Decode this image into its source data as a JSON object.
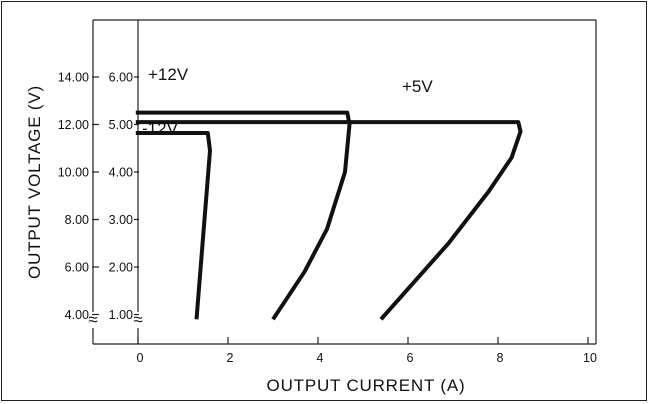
{
  "chart_data": {
    "type": "line",
    "xlabel": "OUTPUT CURRENT (A)",
    "ylabel": "OUTPUT VOLTAGE (V)",
    "x_ticks": [
      "0",
      "2",
      "4",
      "6",
      "8",
      "10"
    ],
    "y_ticks_outer": [
      "14.00",
      "12.00",
      "10.00",
      "8.00",
      "6.00",
      "4.00"
    ],
    "y_ticks_inner": [
      "6.00",
      "5.00",
      "4.00",
      "3.00",
      "2.00",
      "1.00"
    ],
    "axis_break_symbol": "≈",
    "xlim": [
      -1,
      10
    ],
    "ylim_inner": [
      0,
      6.6
    ],
    "grid": false,
    "series": [
      {
        "name": "+12V",
        "points": [
          [
            -0.05,
            5.25
          ],
          [
            4.65,
            5.25
          ],
          [
            4.7,
            5.0
          ],
          [
            4.6,
            4.0
          ],
          [
            4.2,
            2.8
          ],
          [
            3.7,
            1.9
          ],
          [
            3.0,
            0.9
          ]
        ]
      },
      {
        "name": "+5V",
        "points": [
          [
            -0.05,
            5.05
          ],
          [
            8.45,
            5.05
          ],
          [
            8.5,
            4.85
          ],
          [
            8.3,
            4.3
          ],
          [
            7.8,
            3.6
          ],
          [
            6.9,
            2.5
          ],
          [
            5.4,
            0.9
          ]
        ]
      },
      {
        "name": "-12V",
        "points": [
          [
            -0.05,
            4.82
          ],
          [
            1.55,
            4.82
          ],
          [
            1.6,
            4.45
          ],
          [
            1.3,
            0.9
          ]
        ]
      }
    ]
  }
}
